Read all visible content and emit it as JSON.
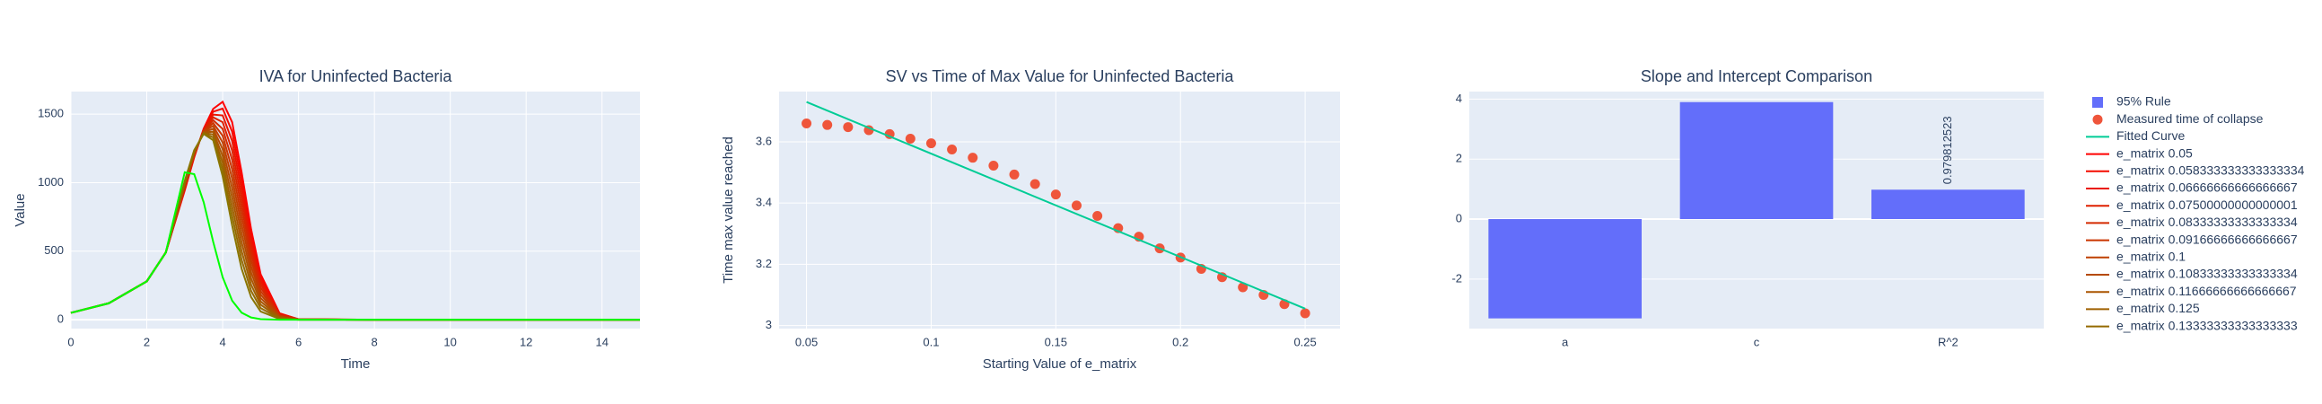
{
  "chart_data": [
    {
      "type": "line",
      "title": "IVA for Uninfected Bacteria",
      "x_label": "Time",
      "y_label": "Value",
      "x": [
        0,
        1,
        2,
        2.5,
        3,
        3.25,
        3.5,
        3.75,
        4,
        4.25,
        4.5,
        4.75,
        5,
        5.5,
        6,
        8,
        10,
        12,
        14,
        15
      ],
      "xlim": [
        0,
        15
      ],
      "xticks": [
        0,
        2,
        4,
        6,
        8,
        10,
        12,
        14
      ],
      "ylim": [
        -65,
        1665
      ],
      "yticks": [
        0,
        500,
        1000,
        1500
      ],
      "grid": true,
      "series": [
        {
          "name": "e_matrix 0.05",
          "color": "#ff0000",
          "values": [
            50,
            120,
            280,
            490,
            943,
            1185,
            1395,
            1539,
            1590,
            1442,
            1076,
            660,
            333,
            47,
            3,
            0,
            0,
            0,
            0,
            0
          ]
        },
        {
          "name": "e_matrix 0.058333333333333334",
          "color": "#f40b00",
          "values": [
            50,
            120,
            280,
            490,
            949,
            1190,
            1391,
            1518,
            1541,
            1373,
            1012,
            615,
            308,
            43,
            3,
            0,
            0,
            0,
            0,
            0
          ]
        },
        {
          "name": "e_matrix 0.06666666666666667",
          "color": "#ea1500",
          "values": [
            50,
            120,
            280,
            490,
            956,
            1194,
            1388,
            1497,
            1491,
            1305,
            948,
            570,
            283,
            39,
            2,
            0,
            0,
            0,
            0,
            0
          ]
        },
        {
          "name": "e_matrix 0.07500000000000001",
          "color": "#df2000",
          "values": [
            50,
            120,
            280,
            490,
            962,
            1199,
            1384,
            1477,
            1442,
            1236,
            884,
            525,
            259,
            36,
            2,
            0,
            0,
            0,
            0,
            0
          ]
        },
        {
          "name": "e_matrix 0.08333333333333334",
          "color": "#d42a00",
          "values": [
            50,
            120,
            280,
            490,
            968,
            1204,
            1381,
            1456,
            1393,
            1168,
            820,
            480,
            234,
            32,
            2,
            0,
            0,
            0,
            0,
            0
          ]
        },
        {
          "name": "e_matrix 0.09166666666666667",
          "color": "#ca3500",
          "values": [
            50,
            120,
            280,
            490,
            975,
            1209,
            1377,
            1435,
            1343,
            1099,
            756,
            435,
            209,
            28,
            2,
            0,
            0,
            0,
            0,
            0
          ]
        },
        {
          "name": "e_matrix 0.1",
          "color": "#bf4000",
          "values": [
            50,
            120,
            280,
            490,
            981,
            1213,
            1374,
            1414,
            1294,
            1031,
            692,
            390,
            184,
            24,
            1,
            0,
            0,
            0,
            0,
            0
          ]
        },
        {
          "name": "e_matrix 0.10833333333333334",
          "color": "#b54a00",
          "values": [
            50,
            120,
            280,
            490,
            988,
            1218,
            1370,
            1393,
            1245,
            962,
            628,
            345,
            159,
            20,
            1,
            0,
            0,
            0,
            0,
            0
          ]
        },
        {
          "name": "e_matrix 0.11666666666666667",
          "color": "#aa5500",
          "values": [
            50,
            120,
            280,
            490,
            994,
            1223,
            1367,
            1372,
            1195,
            894,
            564,
            300,
            134,
            16,
            1,
            0,
            0,
            0,
            0,
            0
          ]
        },
        {
          "name": "e_matrix 0.125",
          "color": "#9f6000",
          "values": [
            50,
            120,
            280,
            490,
            1000,
            1228,
            1363,
            1352,
            1146,
            825,
            500,
            255,
            110,
            13,
            1,
            0,
            0,
            0,
            0,
            0
          ]
        },
        {
          "name": "e_matrix 0.13333333333333333",
          "color": "#956a00",
          "values": [
            50,
            120,
            280,
            490,
            1007,
            1232,
            1360,
            1331,
            1097,
            757,
            436,
            210,
            85,
            9,
            0,
            0,
            0,
            0,
            0,
            0
          ]
        },
        {
          "color": "#8a7500",
          "values": [
            50,
            120,
            280,
            490,
            1013,
            1237,
            1356,
            1310,
            1047,
            688,
            372,
            165,
            60,
            5,
            0,
            0,
            0,
            0,
            0,
            0
          ]
        },
        {
          "color": "#00ff00",
          "values": [
            50,
            120,
            280,
            490,
            1076,
            1062,
            857,
            569,
            310,
            139,
            51,
            16,
            4,
            0,
            0,
            0,
            0,
            0,
            0,
            0
          ]
        }
      ]
    },
    {
      "type": "scatter",
      "title": "SV vs Time of Max Value for Uninfected Bacteria",
      "x_label": "Starting Value of e_matrix",
      "y_label": "Time max value reached",
      "xlim": [
        0.039,
        0.264
      ],
      "xticks": [
        0.05,
        0.1,
        0.15,
        0.2,
        0.25
      ],
      "ylim": [
        2.99,
        3.764
      ],
      "yticks": [
        3,
        3.2,
        3.4,
        3.6
      ],
      "grid": true,
      "series": [
        {
          "name": "Measured time of collapse",
          "mode": "markers",
          "color": "#EF553B",
          "x": [
            0.05,
            0.058333,
            0.066667,
            0.075,
            0.083333,
            0.091667,
            0.1,
            0.108333,
            0.116667,
            0.125,
            0.133333,
            0.141667,
            0.15,
            0.158333,
            0.166667,
            0.175,
            0.183333,
            0.191667,
            0.2,
            0.208333,
            0.216667,
            0.225,
            0.233333,
            0.241667,
            0.25
          ],
          "values": [
            3.66,
            3.655,
            3.648,
            3.638,
            3.625,
            3.61,
            3.595,
            3.575,
            3.548,
            3.522,
            3.493,
            3.462,
            3.428,
            3.392,
            3.358,
            3.318,
            3.29,
            3.252,
            3.222,
            3.185,
            3.158,
            3.125,
            3.1,
            3.07,
            3.04
          ]
        },
        {
          "name": "Fitted Curve",
          "mode": "lines",
          "color": "#00cc96",
          "x": [
            0.05,
            0.25
          ],
          "values": [
            3.73,
            3.055
          ]
        }
      ]
    },
    {
      "type": "bar",
      "title": "Slope and Intercept Comparison",
      "categories": [
        "a",
        "c",
        "R^2"
      ],
      "ylim": [
        -3.65,
        4.25
      ],
      "yticks": [
        -2,
        0,
        2,
        4
      ],
      "grid": true,
      "series": [
        {
          "name": "95% Rule",
          "color": "#636efa",
          "values": [
            -3.31,
            3.9,
            0.979812523
          ],
          "value_labels": [
            null,
            null,
            "0.979812523"
          ]
        }
      ]
    }
  ]
}
